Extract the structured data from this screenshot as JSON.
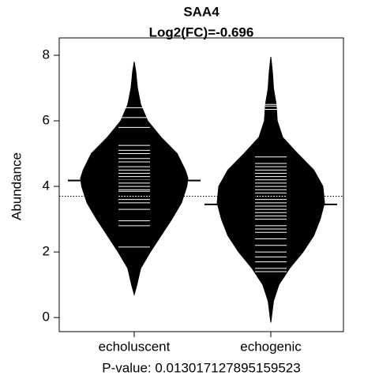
{
  "chart_data": {
    "type": "beanplot",
    "title": "SAA4",
    "subtitle": "Log2(FC)=-0.696",
    "y_label": "Abundance",
    "x_label": "P-value: 0.013017127895159523",
    "categories": [
      "echoluscent",
      "echogenic"
    ],
    "ylim": [
      -0.43,
      8.53
    ],
    "yticks": [
      0,
      2,
      4,
      6,
      8
    ],
    "overall_mean": 3.7,
    "color": "#000000",
    "point_color": "#ffffff",
    "series": [
      {
        "name": "echoluscent",
        "mean": 4.18,
        "density_y": [
          0.7,
          1,
          1.5,
          2,
          2.5,
          3,
          3.5,
          4,
          4.25,
          4.5,
          5,
          5.5,
          6,
          6.5,
          7,
          7.5,
          7.8
        ],
        "density": [
          0,
          0.05,
          0.12,
          0.3,
          0.5,
          0.7,
          0.88,
          0.98,
          1,
          0.95,
          0.8,
          0.5,
          0.25,
          0.12,
          0.06,
          0.03,
          0
        ],
        "points": [
          2.15,
          2.8,
          2.95,
          3.3,
          3.5,
          3.6,
          3.7,
          3.85,
          3.9,
          4.0,
          4.1,
          4.2,
          4.3,
          4.4,
          4.5,
          4.6,
          4.75,
          4.85,
          5.0,
          5.1,
          5.25,
          5.8,
          6.1,
          6.4
        ]
      },
      {
        "name": "echogenic",
        "mean": 3.45,
        "density_y": [
          -0.15,
          0.5,
          1,
          1.5,
          2,
          2.5,
          3,
          3.5,
          4,
          4.5,
          5,
          5.5,
          6,
          6.5,
          7,
          7.5,
          7.95
        ],
        "density": [
          0,
          0.05,
          0.15,
          0.35,
          0.6,
          0.8,
          0.92,
          1,
          0.97,
          0.8,
          0.5,
          0.22,
          0.12,
          0.1,
          0.05,
          0.03,
          0
        ],
        "points": [
          1.4,
          1.5,
          1.7,
          1.85,
          2.0,
          2.2,
          2.4,
          2.6,
          2.7,
          2.8,
          3.0,
          3.1,
          3.2,
          3.3,
          3.4,
          3.5,
          3.6,
          3.7,
          3.8,
          3.9,
          4.0,
          4.1,
          4.2,
          4.3,
          4.4,
          4.5,
          4.6,
          4.7,
          4.9,
          6.35,
          6.45,
          6.5
        ]
      }
    ]
  }
}
